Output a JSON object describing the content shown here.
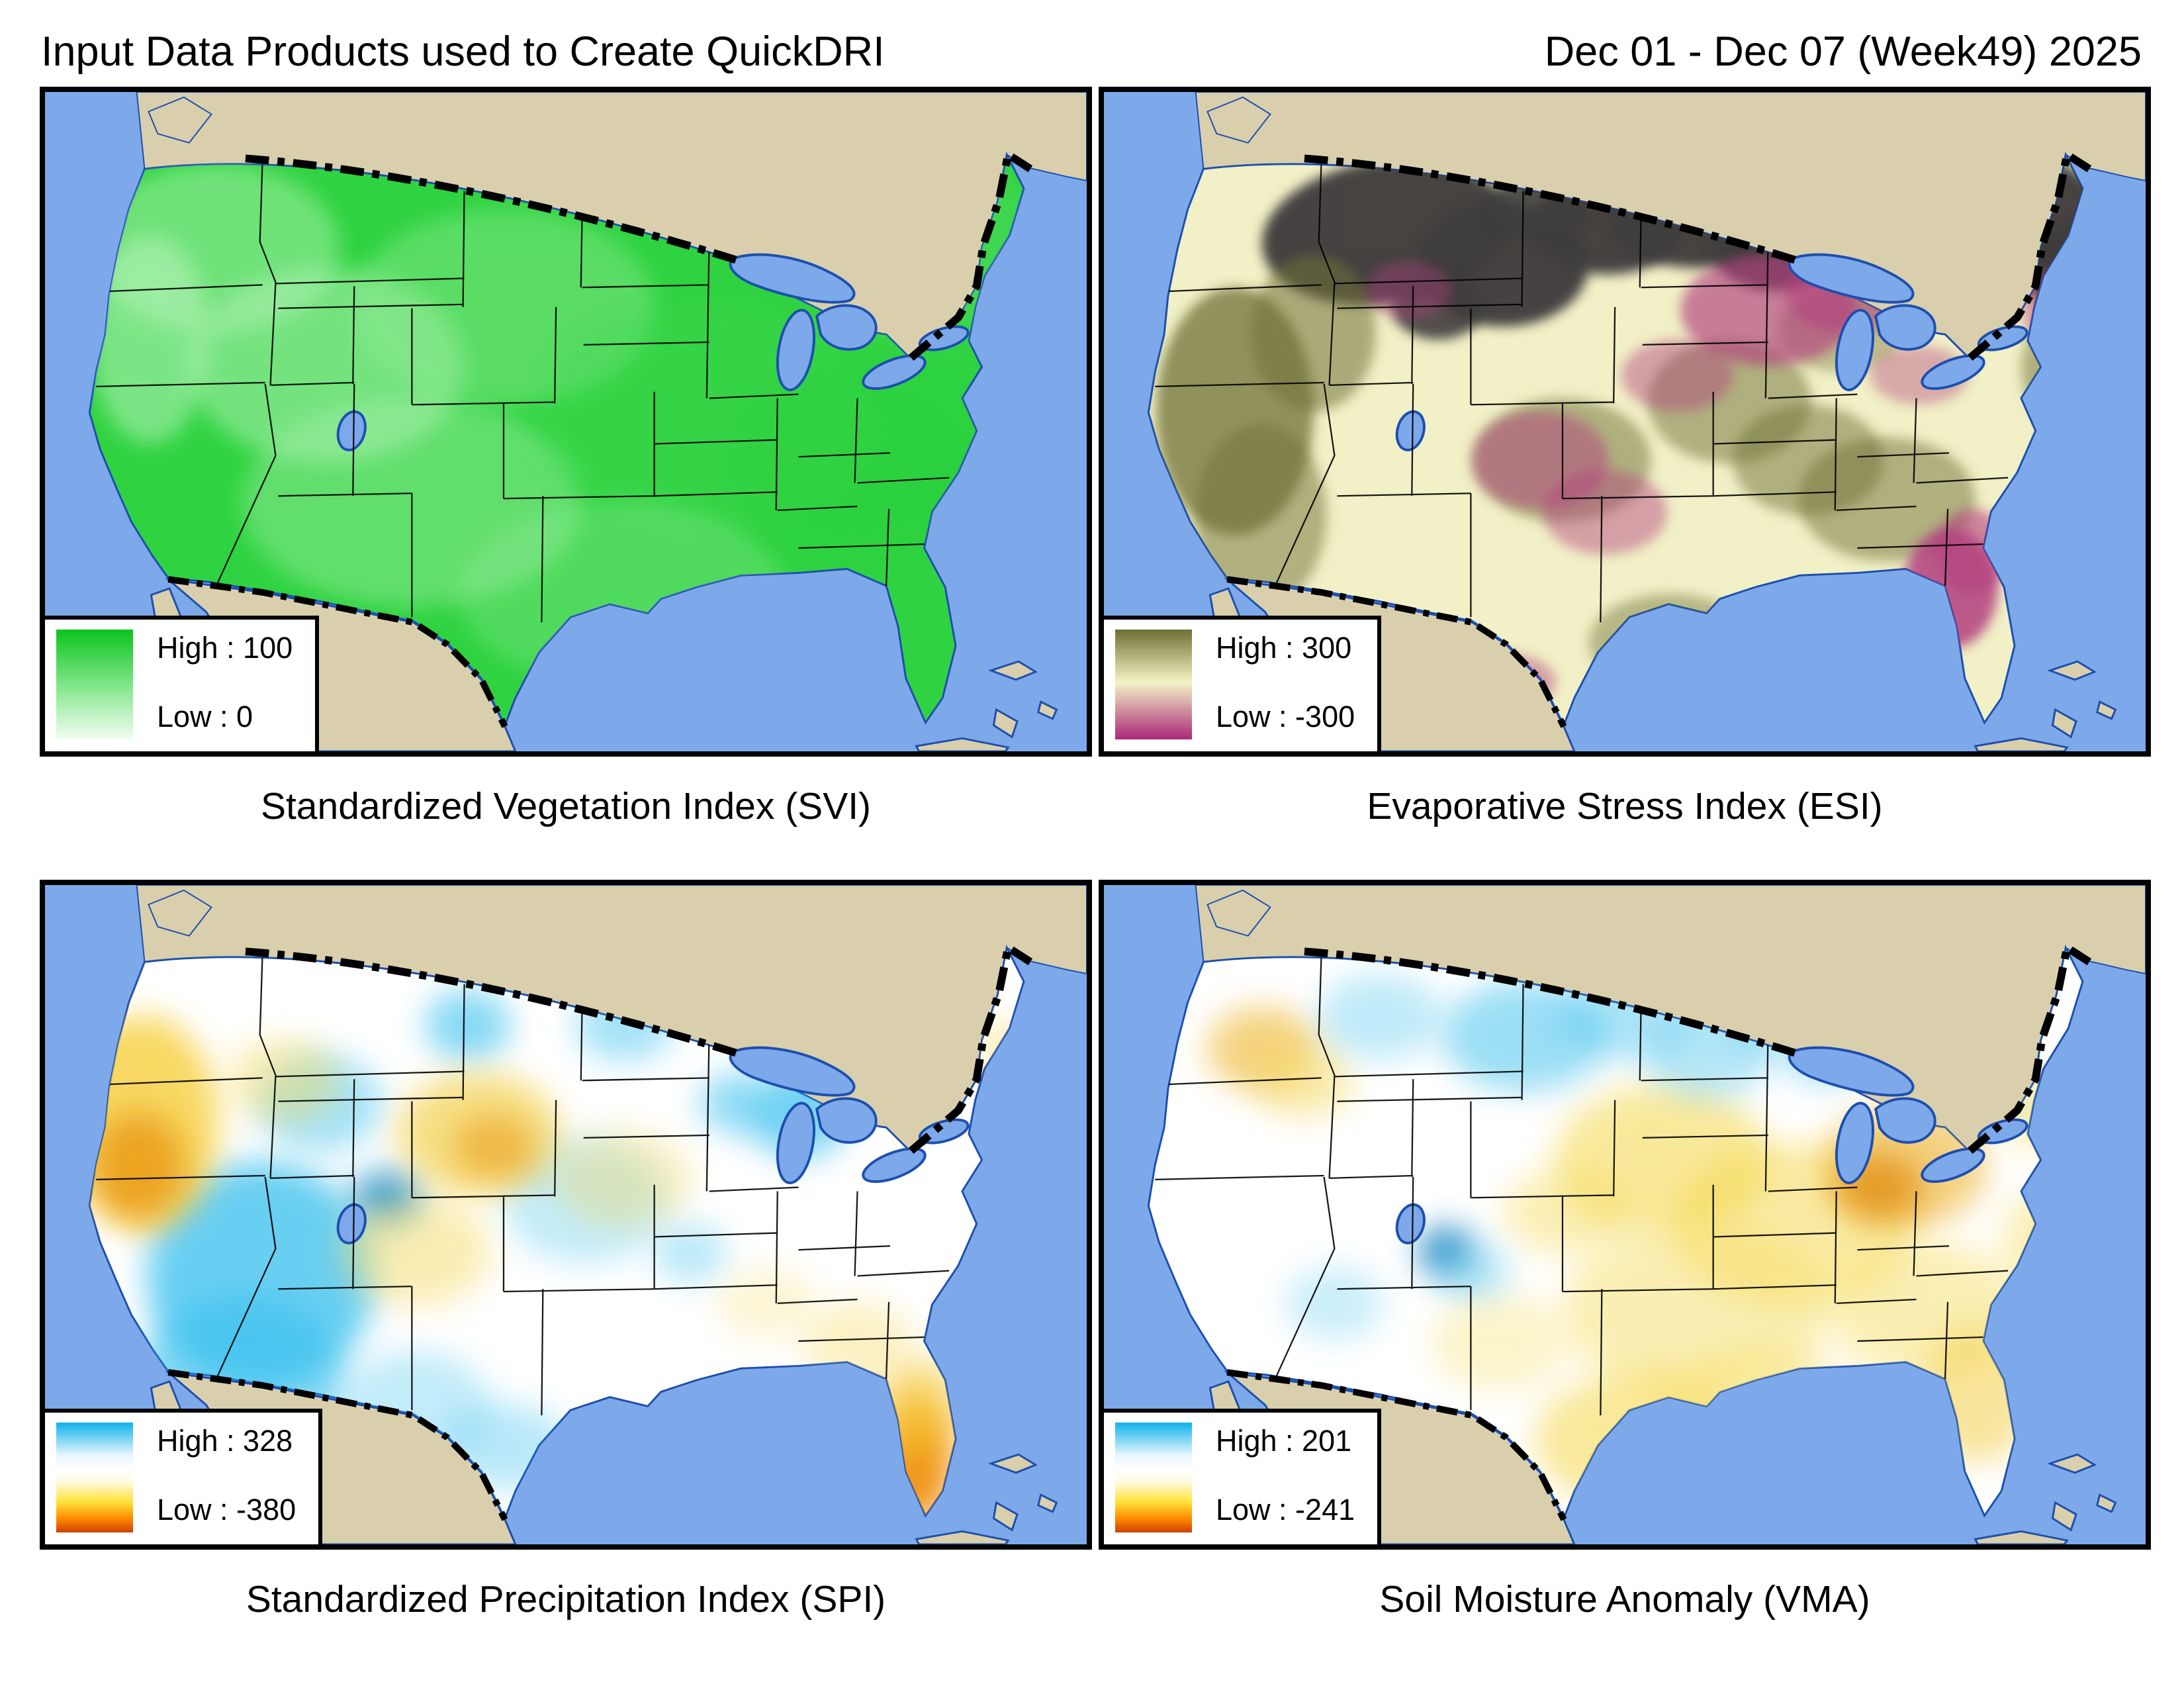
{
  "header": {
    "title": "Input Data Products used to Create QuickDRI",
    "date_range": "Dec 01 - Dec 07 (Week49) 2025"
  },
  "panels": [
    {
      "id": "svi",
      "caption": "Standardized Vegetation Index (SVI)",
      "legend": {
        "high_label": "High",
        "high_value": 100,
        "high_text": "High : 100",
        "low_label": "Low",
        "low_value": 0,
        "low_text": "Low : 0",
        "gradient": [
          "#0bc41e 0%",
          "#8ae992 55%",
          "#f2fdf2 100%"
        ]
      },
      "map_colors": {
        "base": "#2fd341",
        "light_variation": "#a9efab"
      }
    },
    {
      "id": "esi",
      "caption": "Evaporative Stress Index (ESI)",
      "legend": {
        "high_label": "High",
        "high_value": 300,
        "high_text": "High : 300",
        "low_label": "Low",
        "low_value": -300,
        "low_text": "Low : -300",
        "gradient": [
          "#6d7034 0%",
          "#f4f4c6 48%",
          "#ab2878 100%"
        ]
      },
      "map_colors": {
        "base": "#f1f0c6",
        "positive_olive": "#6f7238",
        "negative_magenta": "#b2407f",
        "no_data_gray": "#3f3e3c"
      }
    },
    {
      "id": "spi",
      "caption": "Standardized Precipitation Index (SPI)",
      "legend": {
        "high_label": "High",
        "high_value": 328,
        "high_text": "High : 328",
        "low_label": "Low",
        "low_value": -380,
        "low_text": "Low : -380",
        "gradient": [
          "#0fb2ea 0%",
          "#e8f7fd 30%",
          "#ffffff 42%",
          "#fffbe0 54%",
          "#ffe23c 72%",
          "#ff8c00 87%",
          "#cf3f03 100%"
        ]
      },
      "map_colors": {
        "base": "#ffffff",
        "wet_blue": "#37c0ee",
        "dry_yellow": "#f6cf3a",
        "very_dry_orange": "#e8930e"
      }
    },
    {
      "id": "vma",
      "caption": "Soil Moisture Anomaly (VMA)",
      "legend": {
        "high_label": "High",
        "high_value": 201,
        "high_text": "High : 201",
        "low_label": "Low",
        "low_value": -241,
        "low_text": "Low : -241",
        "gradient": [
          "#0fb2ea 0%",
          "#e8f7fd 30%",
          "#ffffff 42%",
          "#fffbe0 54%",
          "#ffe23c 72%",
          "#ff8c00 87%",
          "#cf3f03 100%"
        ]
      },
      "map_colors": {
        "base": "#ffffff",
        "wet_blue": "#4cc4ee",
        "dry_yellow": "#f4d74a",
        "very_dry_orange": "#e28c12"
      }
    }
  ],
  "map_common": {
    "ocean": "#7da9ea",
    "foreign_land": "#d9cfad",
    "coastline": "#1d4fae",
    "international_border": "#000000",
    "state_border": "#000000"
  }
}
